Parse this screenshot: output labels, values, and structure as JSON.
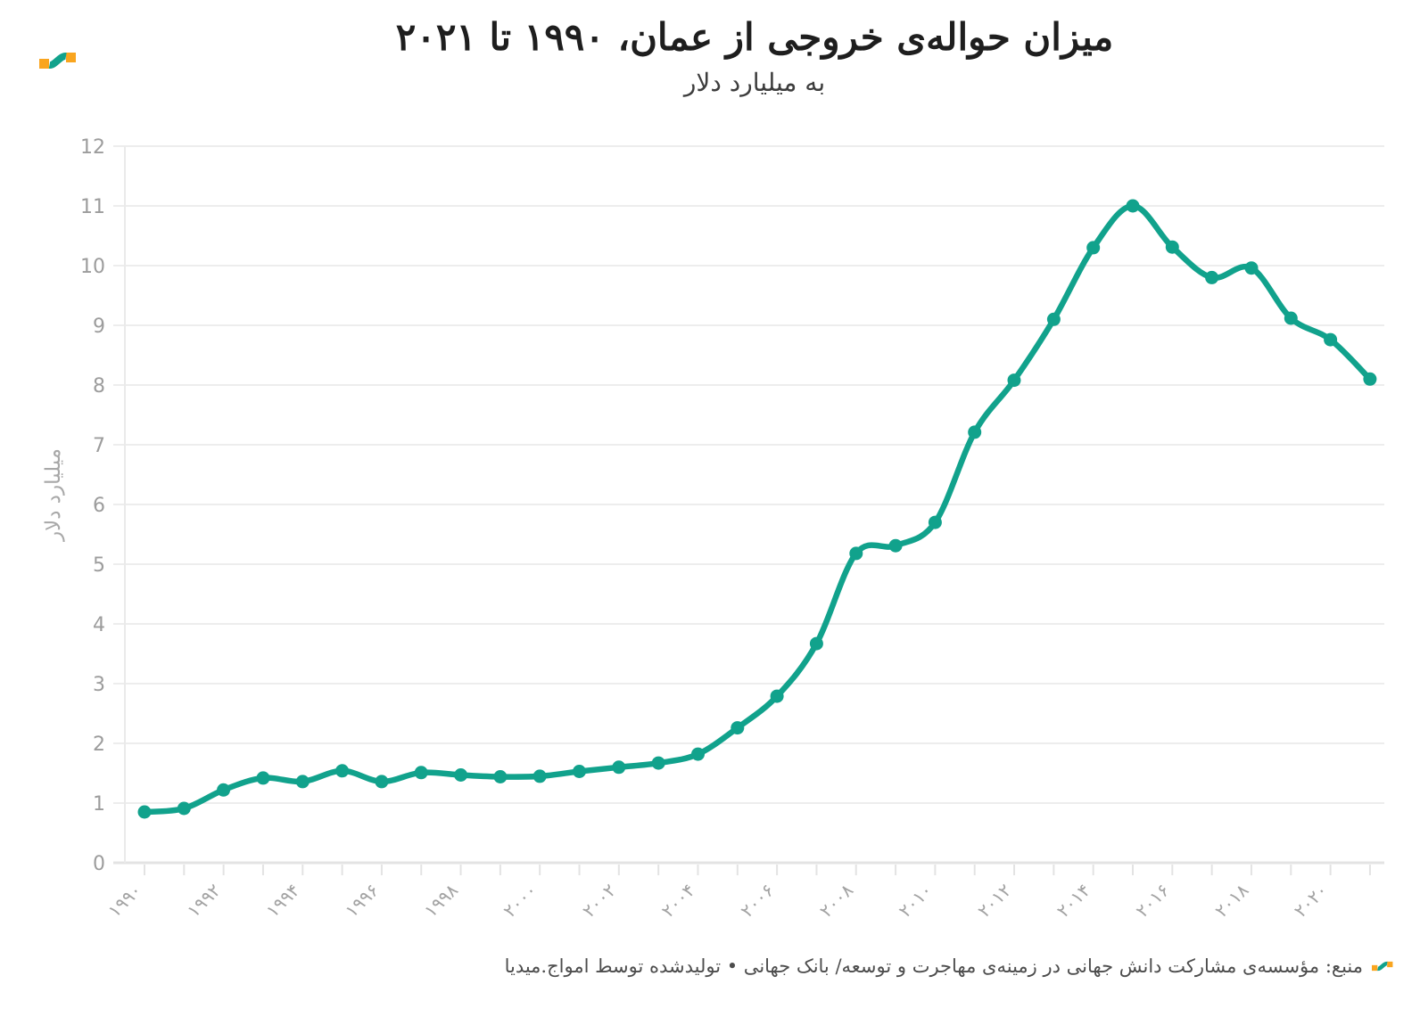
{
  "header": {
    "title": "میزان حواله‌ی خروجی از عمان، ۱۹۹۰ تا ۲۰۲۱",
    "subtitle": "به میلیارد دلار"
  },
  "footer": {
    "source_text": "منبع: مؤسسه‌ی مشارکت دانش جهانی در زمینه‌ی مهاجرت و توسعه/ بانک جهانی • تولیدشده توسط امواج.میدیا"
  },
  "brand": {
    "logo_name": "amwaj-media-logo",
    "teal": "#11A28C",
    "orange": "#F9A51F"
  },
  "colors": {
    "line": "#11A28C",
    "gridline": "#EDEDED",
    "baseline": "#E3E3E3",
    "axis_line": "#EAEAEA",
    "y_tick_label": "#9C9C9C",
    "x_tick_label": "#A3A3A3"
  },
  "chart_data": {
    "type": "line",
    "title": "میزان حواله‌ی خروجی از عمان، ۱۹۹۰ تا ۲۰۲۱",
    "subtitle": "به میلیارد دلار",
    "xlabel": "",
    "ylabel": "میلیارد دلار",
    "ylim": [
      0,
      12
    ],
    "yticks": [
      0,
      1,
      2,
      3,
      4,
      5,
      6,
      7,
      8,
      9,
      10,
      11,
      12
    ],
    "grid": true,
    "legend_position": "none",
    "x": [
      1990,
      1991,
      1992,
      1993,
      1994,
      1995,
      1996,
      1997,
      1998,
      1999,
      2000,
      2001,
      2002,
      2003,
      2004,
      2005,
      2006,
      2007,
      2008,
      2009,
      2010,
      2011,
      2012,
      2013,
      2014,
      2015,
      2016,
      2017,
      2018,
      2019,
      2020,
      2021
    ],
    "x_tick_step": 2,
    "x_tick_labels": [
      "۱۹۹۰",
      "۱۹۹۲",
      "۱۹۹۴",
      "۱۹۹۶",
      "۱۹۹۸",
      "۲۰۰۰",
      "۲۰۰۲",
      "۲۰۰۴",
      "۲۰۰۶",
      "۲۰۰۸",
      "۲۰۱۰",
      "۲۰۱۲",
      "۲۰۱۴",
      "۲۰۱۶",
      "۲۰۱۸",
      "۲۰۲۰"
    ],
    "series": [
      {
        "name": "حواله خروجی از عمان (میلیارد دلار)",
        "color": "#11A28C",
        "values": [
          0.85,
          0.91,
          1.22,
          1.42,
          1.36,
          1.54,
          1.36,
          1.51,
          1.47,
          1.44,
          1.45,
          1.53,
          1.6,
          1.67,
          1.82,
          2.26,
          2.79,
          3.67,
          5.18,
          5.31,
          5.7,
          7.21,
          8.08,
          9.1,
          10.3,
          11.0,
          10.31,
          9.8,
          9.96,
          9.12,
          8.76,
          8.1
        ]
      }
    ]
  }
}
